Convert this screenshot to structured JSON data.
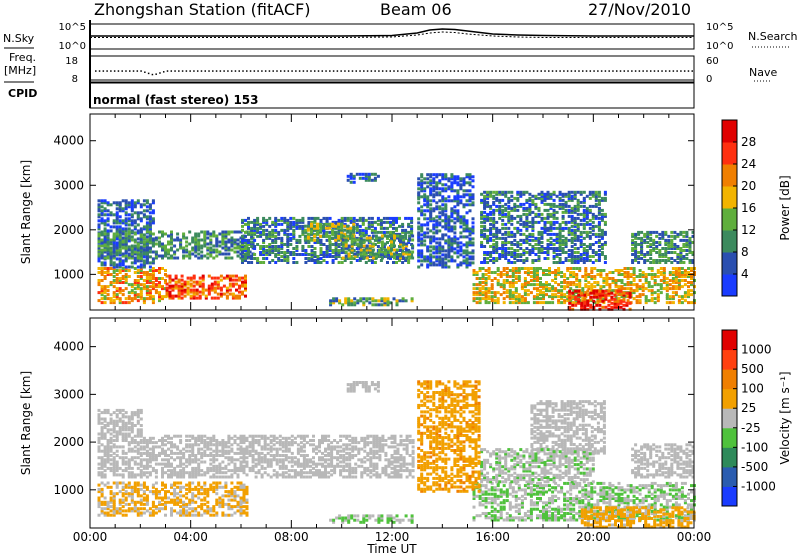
{
  "header": {
    "station": "Zhongshan Station (fitACF)",
    "beam": "Beam 06",
    "date": "27/Nov/2010"
  },
  "left_labels": {
    "nsky": "N.Sky",
    "freq_top": "Freq.",
    "freq_unit": "[MHz]",
    "cpid": "CPID"
  },
  "right_labels": {
    "nsearch": "N.Search",
    "nave": "Nave"
  },
  "cpid_text": "normal (fast stereo) 153",
  "chart_data": [
    {
      "type": "line",
      "panel": "noise",
      "ylabel": "N.Sky",
      "yticks_left": [
        "10^5",
        "10^0"
      ],
      "yticks_right": [
        "10^5",
        "10^0"
      ],
      "series": [
        {
          "name": "N.Sky",
          "x": [
            0,
            2,
            4,
            6,
            8,
            10,
            12,
            13,
            13.5,
            14,
            14.5,
            15,
            16,
            17,
            18,
            20,
            22,
            24
          ],
          "values": [
            2.6,
            2.6,
            2.6,
            2.6,
            2.6,
            2.6,
            2.7,
            3.2,
            3.8,
            4.0,
            3.9,
            3.6,
            3.0,
            2.8,
            2.7,
            2.6,
            2.6,
            2.6
          ]
        },
        {
          "name": "N.Search",
          "x": [
            0,
            2,
            4,
            6,
            8,
            10,
            12,
            13,
            13.5,
            14,
            14.5,
            15,
            16,
            17,
            18,
            20,
            22,
            24
          ],
          "values": [
            2.3,
            2.3,
            2.3,
            2.3,
            2.3,
            2.3,
            2.4,
            2.8,
            3.2,
            3.4,
            3.3,
            3.0,
            2.6,
            2.4,
            2.3,
            2.3,
            2.3,
            2.3
          ]
        }
      ],
      "ylim": [
        0,
        5
      ]
    },
    {
      "type": "scatter",
      "panel": "frequency",
      "ylabel": "Freq. [MHz]",
      "yticks_left": [
        "18",
        "8"
      ],
      "yticks_right": [
        "60",
        "0"
      ],
      "series": [
        {
          "name": "Freq",
          "x": [
            0,
            2,
            2.5,
            3,
            4,
            8,
            12,
            16,
            20,
            24
          ],
          "values": [
            12.5,
            12.5,
            11,
            12.5,
            12.5,
            12.5,
            12.5,
            12.5,
            12.5,
            12.5
          ]
        },
        {
          "name": "Nave",
          "x": [
            0,
            4,
            8,
            12,
            16,
            20,
            24
          ],
          "values": [
            1.5,
            1.5,
            1.5,
            1.5,
            1.5,
            1.5,
            1.5
          ]
        }
      ]
    },
    {
      "type": "heatmap",
      "panel": "power",
      "ylabel": "Slant Range [km]",
      "yticks": [
        "1000",
        "2000",
        "3000",
        "4000"
      ],
      "colorbar_label": "Power [dB]",
      "colorbar_ticks": [
        "4",
        "8",
        "12",
        "16",
        "20",
        "24",
        "28"
      ],
      "colorbar_colors": [
        "#1a3cff",
        "#2a4fb0",
        "#3c8a5e",
        "#5fae3c",
        "#f2b400",
        "#f07f00",
        "#ff3010",
        "#e00000"
      ],
      "zlim": [
        0,
        32
      ],
      "ylim": [
        200,
        4600
      ],
      "xlim": [
        0,
        24
      ],
      "blobs": [
        {
          "t0": 0.3,
          "t1": 3.0,
          "r0": 400,
          "r1": 1200,
          "z": 20
        },
        {
          "t0": 3.0,
          "t1": 6.2,
          "r0": 500,
          "r1": 1000,
          "z": 24
        },
        {
          "t0": 0.3,
          "t1": 2.5,
          "r0": 1200,
          "r1": 2700,
          "z": 6
        },
        {
          "t0": 0.3,
          "t1": 6.5,
          "r0": 1400,
          "r1": 2000,
          "z": 10
        },
        {
          "t0": 6.0,
          "t1": 12.8,
          "r0": 1300,
          "r1": 2300,
          "z": 8
        },
        {
          "t0": 8.5,
          "t1": 10.5,
          "r0": 1800,
          "r1": 2200,
          "z": 14
        },
        {
          "t0": 10.0,
          "t1": 12.8,
          "r0": 1400,
          "r1": 1900,
          "z": 12
        },
        {
          "t0": 9.5,
          "t1": 12.8,
          "r0": 350,
          "r1": 500,
          "z": 12
        },
        {
          "t0": 15.2,
          "t1": 24.0,
          "r0": 400,
          "r1": 1200,
          "z": 18
        },
        {
          "t0": 15.5,
          "t1": 20.5,
          "r0": 1300,
          "r1": 2900,
          "z": 8
        },
        {
          "t0": 21.5,
          "t1": 24.0,
          "r0": 1300,
          "r1": 2000,
          "z": 10
        },
        {
          "t0": 19.0,
          "t1": 21.5,
          "r0": 250,
          "r1": 700,
          "z": 28
        },
        {
          "t0": 13.0,
          "t1": 15.2,
          "r0": 1200,
          "r1": 3300,
          "z": 6
        },
        {
          "t0": 10.2,
          "t1": 11.5,
          "r0": 3100,
          "r1": 3300,
          "z": 6
        }
      ]
    },
    {
      "type": "heatmap",
      "panel": "velocity",
      "xlabel": "Time UT",
      "ylabel": "Slant Range [km]",
      "yticks": [
        "1000",
        "2000",
        "3000",
        "4000"
      ],
      "xticks": [
        "00:00",
        "04:00",
        "08:00",
        "12:00",
        "16:00",
        "20:00",
        "00:00"
      ],
      "colorbar_label": "Velocity [m s⁻¹]",
      "colorbar_ticks": [
        "1000",
        "500",
        "100",
        "25",
        "-25",
        "-100",
        "-500",
        "-1000"
      ],
      "colorbar_colors": [
        "#1a3cff",
        "#2a5cb0",
        "#2e8a5a",
        "#4fc23c",
        "#b8b8b8",
        "#f2a000",
        "#f07f00",
        "#ff4010",
        "#e00000"
      ],
      "zlim": [
        -1200,
        1200
      ],
      "ylim": [
        200,
        4600
      ],
      "xlim": [
        0,
        24
      ],
      "blobs": [
        {
          "t0": 0.3,
          "t1": 6.2,
          "r0": 500,
          "r1": 1200,
          "z": -180
        },
        {
          "t0": 0.3,
          "t1": 12.8,
          "r0": 1300,
          "r1": 2200,
          "z": 0
        },
        {
          "t0": 0.3,
          "t1": 2.0,
          "r0": 2200,
          "r1": 2700,
          "z": 0
        },
        {
          "t0": 9.5,
          "t1": 12.8,
          "r0": 350,
          "r1": 500,
          "z": 150
        },
        {
          "t0": 15.2,
          "t1": 24.0,
          "r0": 400,
          "r1": 1200,
          "z": 120
        },
        {
          "t0": 17.5,
          "t1": 20.5,
          "r0": 1800,
          "r1": 2900,
          "z": 0
        },
        {
          "t0": 15.5,
          "t1": 20.0,
          "r0": 1200,
          "r1": 1900,
          "z": 70
        },
        {
          "t0": 21.5,
          "t1": 24.0,
          "r0": 1300,
          "r1": 2000,
          "z": 0
        },
        {
          "t0": 19.5,
          "t1": 24.0,
          "r0": 250,
          "r1": 700,
          "z": -250
        },
        {
          "t0": 13.0,
          "t1": 15.5,
          "r0": 1000,
          "r1": 3300,
          "z": -300
        },
        {
          "t0": 10.2,
          "t1": 11.5,
          "r0": 3100,
          "r1": 3300,
          "z": 0
        }
      ]
    }
  ]
}
